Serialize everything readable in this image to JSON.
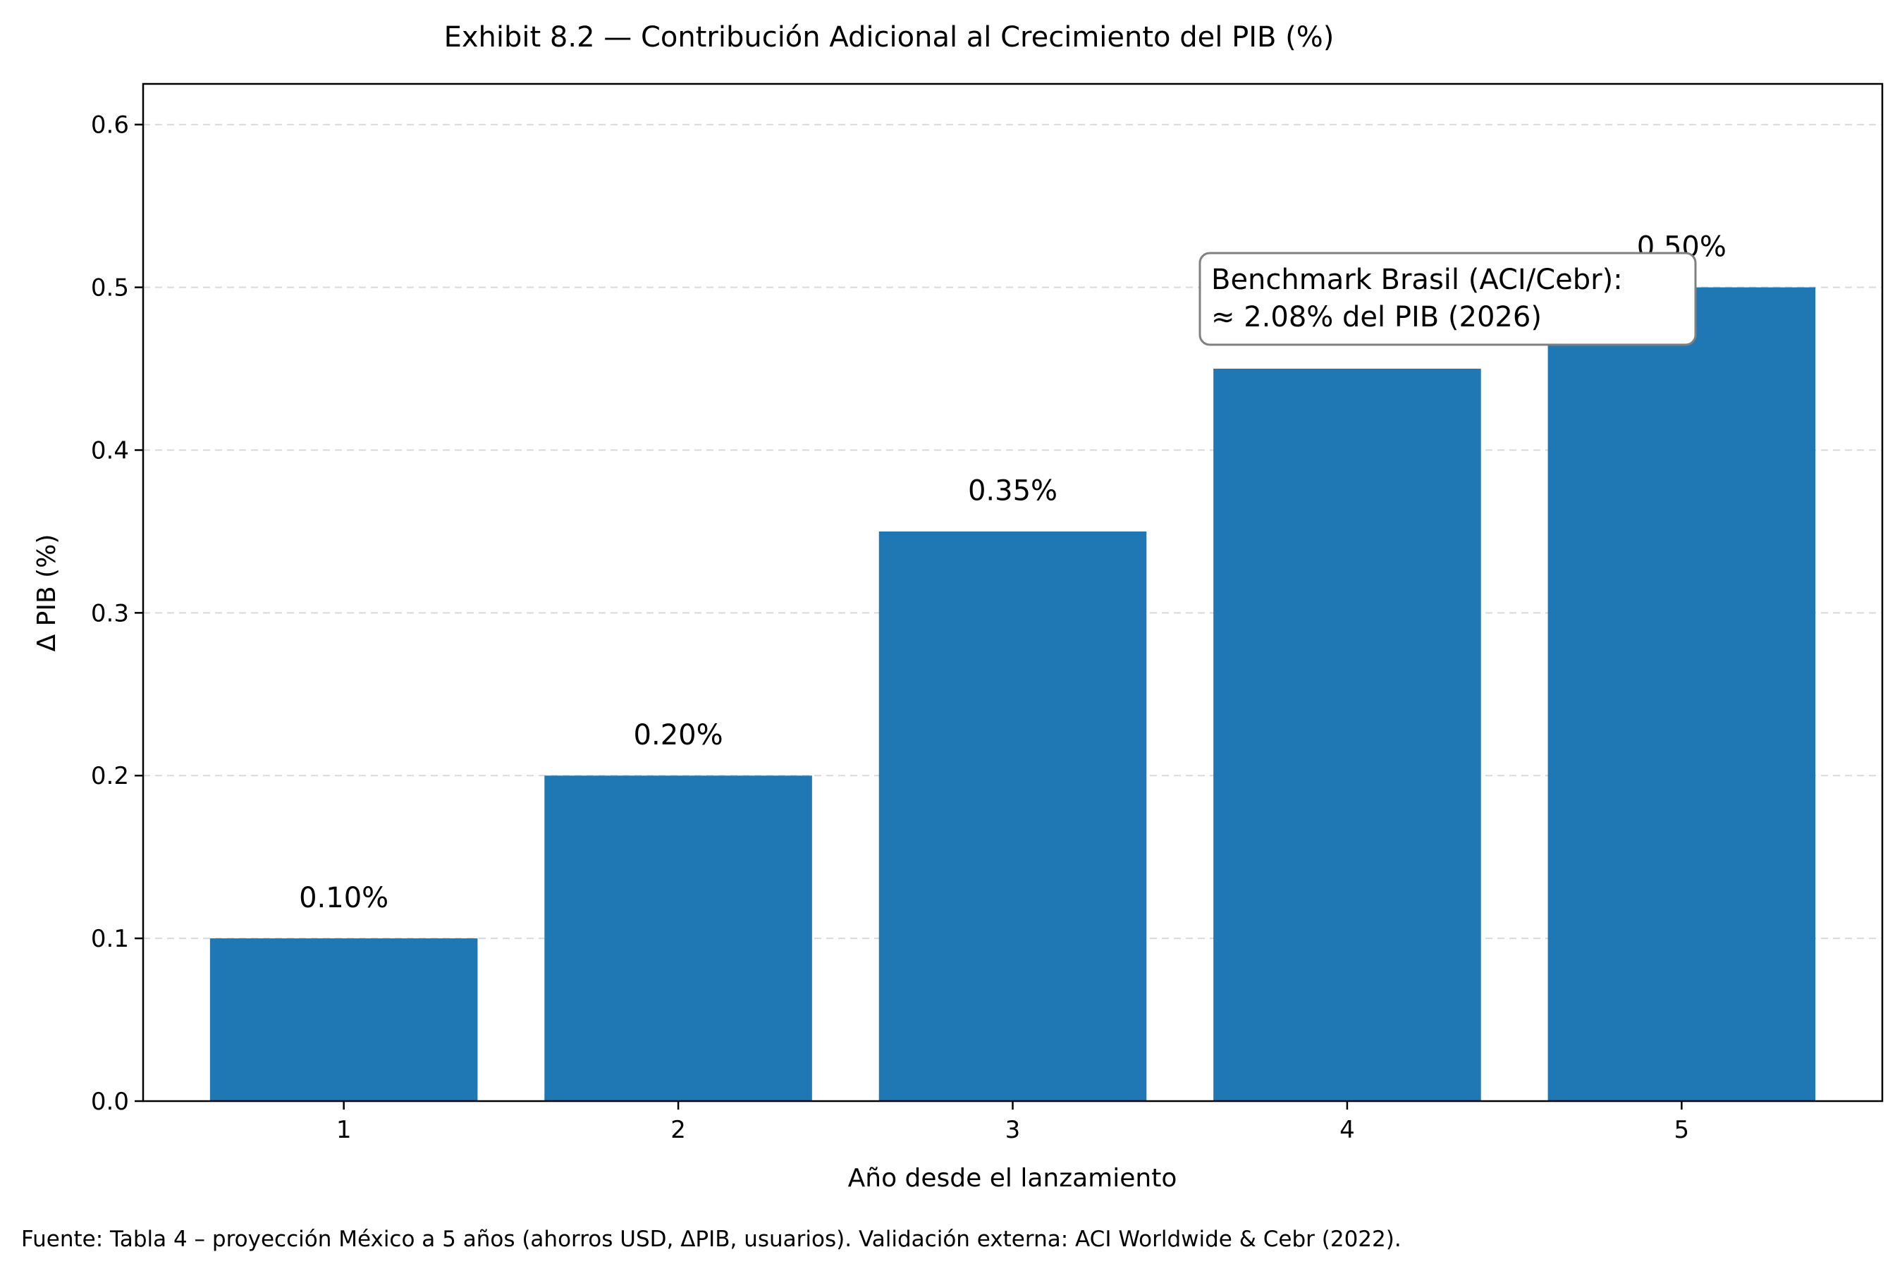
{
  "chart_data": {
    "type": "bar",
    "title": "Exhibit 8.2 — Contribución Adicional al Crecimiento del PIB (%)",
    "xlabel": "Año desde el lanzamiento",
    "ylabel": "Δ PIB (%)",
    "categories": [
      "1",
      "2",
      "3",
      "4",
      "5"
    ],
    "values": [
      0.1,
      0.2,
      0.35,
      0.45,
      0.5
    ],
    "data_labels": [
      "0.10%",
      "0.20%",
      "0.35%",
      "",
      "0.50%"
    ],
    "ylim": [
      0,
      0.625
    ],
    "yticks": [
      0.0,
      0.1,
      0.2,
      0.3,
      0.4,
      0.5,
      0.6
    ],
    "ytick_labels": [
      "0.0",
      "0.1",
      "0.2",
      "0.3",
      "0.4",
      "0.5",
      "0.6"
    ],
    "grid": "horizontal dashed",
    "bar_color": "#1f77b4",
    "annotation": {
      "line1": "Benchmark Brasil (ACI/Cebr):",
      "line2": "≈ 2.08% del PIB (2026)"
    }
  },
  "source_note": "Fuente: Tabla 4 – proyección México a 5 años (ahorros USD, ΔPIB, usuarios). Validación externa: ACI Worldwide & Cebr (2022)."
}
